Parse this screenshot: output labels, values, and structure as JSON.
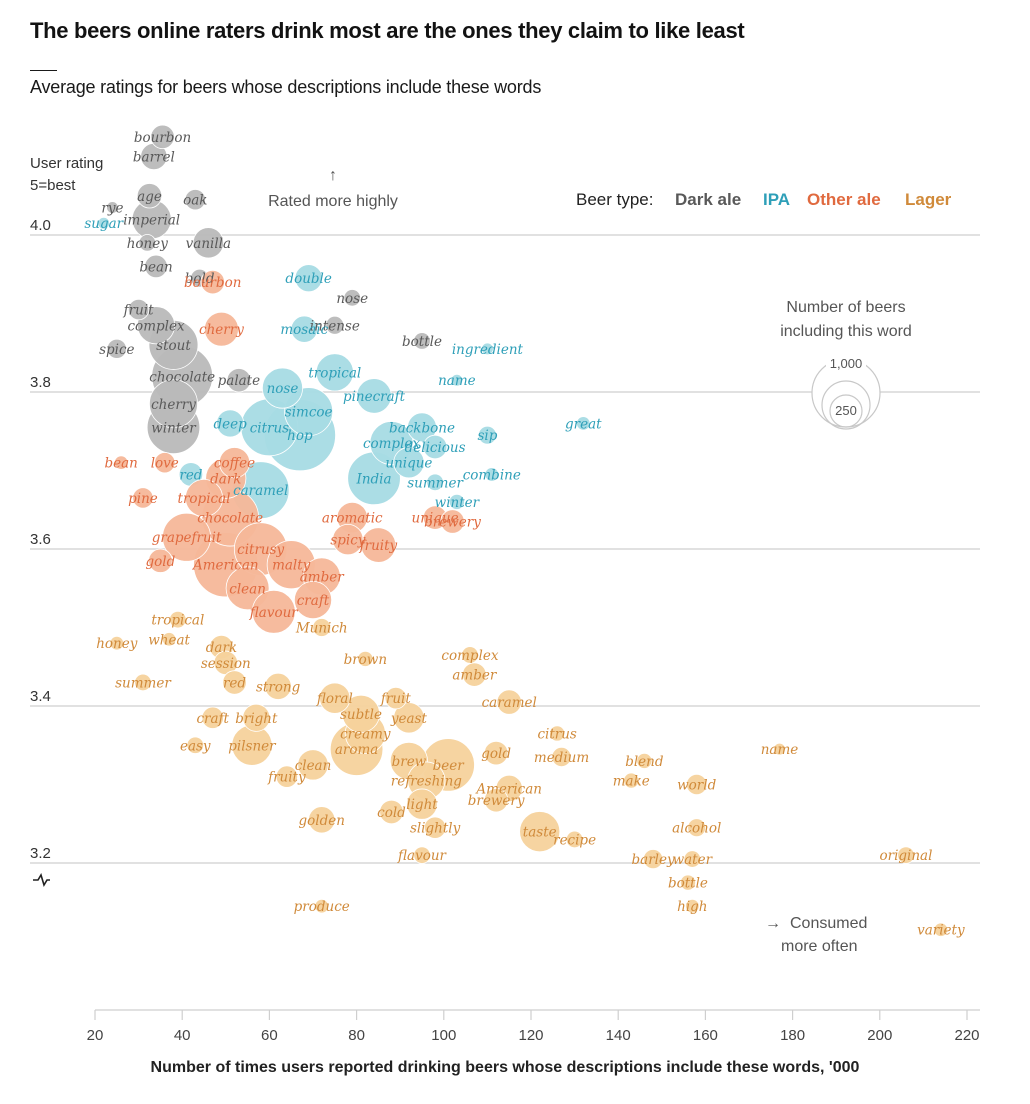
{
  "header": {
    "title": "The beers online raters drink most are the ones they claim to like least",
    "subtitle": "Average ratings for beers whose descriptions include these words"
  },
  "annotations": {
    "y_axis_title_line1": "User rating",
    "y_axis_title_line2": "5=best",
    "rated_more_highly": "Rated more highly",
    "consumed_more_often_line1": "Consumed",
    "consumed_more_often_line2": "more often",
    "size_legend_line1": "Number of beers",
    "size_legend_line2": "including this word",
    "size_legend_large": "1,000",
    "size_legend_small": "250",
    "legend_prefix": "Beer type:"
  },
  "chart_data": {
    "type": "scatter",
    "title": "The beers online raters drink most are the ones they claim to like least",
    "subtitle": "Average ratings for beers whose descriptions include these words",
    "xlabel": "Number of times users reported drinking beers whose descriptions include these words, '000",
    "ylabel": "User rating 5=best",
    "xlim": [
      20,
      222
    ],
    "ylim": [
      3.05,
      4.1
    ],
    "xticks": [
      "20",
      "40",
      "60",
      "80",
      "100",
      "120",
      "140",
      "160",
      "180",
      "200",
      "220"
    ],
    "yticks": [
      "4.0",
      "3.8",
      "3.6",
      "3.4",
      "3.2"
    ],
    "ytick_values": [
      4.0,
      3.8,
      3.6,
      3.4,
      3.2
    ],
    "grid": "horizontal",
    "legend": {
      "title": "Beer type:",
      "placement": "top-right",
      "entries": [
        {
          "name": "Dark ale",
          "color": "#595959",
          "bubble": "#b9b9b9"
        },
        {
          "name": "IPA",
          "color": "#2e9fb8",
          "bubble": "#a6dbe4"
        },
        {
          "name": "Other ale",
          "color": "#e06a3f",
          "bubble": "#f5b799"
        },
        {
          "name": "Lager",
          "color": "#d08a3a",
          "bubble": "#f5d29c"
        }
      ]
    },
    "size_legend": {
      "label": "Number of beers including this word",
      "values": [
        1000,
        250
      ]
    },
    "series": [
      {
        "name": "Dark ale",
        "points": [
          {
            "word": "bourbon",
            "x": 35.5,
            "y": 4.125,
            "n": 120
          },
          {
            "word": "barrel",
            "x": 33.5,
            "y": 4.1,
            "n": 150
          },
          {
            "word": "age",
            "x": 32.5,
            "y": 4.05,
            "n": 130
          },
          {
            "word": "oak",
            "x": 43,
            "y": 4.045,
            "n": 90
          },
          {
            "word": "rye",
            "x": 24,
            "y": 4.035,
            "n": 30
          },
          {
            "word": "imperial",
            "x": 33,
            "y": 4.02,
            "n": 330
          },
          {
            "word": "honey",
            "x": 32,
            "y": 3.99,
            "n": 60
          },
          {
            "word": "vanilla",
            "x": 46,
            "y": 3.99,
            "n": 200
          },
          {
            "word": "bean",
            "x": 34,
            "y": 3.96,
            "n": 110
          },
          {
            "word": "bold",
            "x": 44,
            "y": 3.945,
            "n": 70
          },
          {
            "word": "nose",
            "x": 79,
            "y": 3.92,
            "n": 60
          },
          {
            "word": "fruit",
            "x": 30,
            "y": 3.905,
            "n": 90
          },
          {
            "word": "complex",
            "x": 34,
            "y": 3.885,
            "n": 300
          },
          {
            "word": "intense",
            "x": 75,
            "y": 3.885,
            "n": 70
          },
          {
            "word": "bottle",
            "x": 95,
            "y": 3.865,
            "n": 60
          },
          {
            "word": "spice",
            "x": 25,
            "y": 3.855,
            "n": 80
          },
          {
            "word": "stout",
            "x": 38,
            "y": 3.86,
            "n": 520
          },
          {
            "word": "chocolate",
            "x": 40,
            "y": 3.82,
            "n": 800
          },
          {
            "word": "palate",
            "x": 53,
            "y": 3.815,
            "n": 120
          },
          {
            "word": "cherry",
            "x": 38,
            "y": 3.785,
            "n": 500
          },
          {
            "word": "winter",
            "x": 38,
            "y": 3.755,
            "n": 600
          }
        ]
      },
      {
        "name": "IPA",
        "points": [
          {
            "word": "sugar",
            "x": 22,
            "y": 4.015,
            "n": 30
          },
          {
            "word": "double",
            "x": 69,
            "y": 3.945,
            "n": 160
          },
          {
            "word": "mosaic",
            "x": 68,
            "y": 3.88,
            "n": 150
          },
          {
            "word": "ingredient",
            "x": 110,
            "y": 3.855,
            "n": 30
          },
          {
            "word": "tropical",
            "x": 75,
            "y": 3.825,
            "n": 300
          },
          {
            "word": "name",
            "x": 103,
            "y": 3.815,
            "n": 30
          },
          {
            "word": "nose",
            "x": 63,
            "y": 3.805,
            "n": 350
          },
          {
            "word": "pinecraft",
            "x": 84,
            "y": 3.795,
            "n": 260
          },
          {
            "word": "great",
            "x": 132,
            "y": 3.76,
            "n": 40
          },
          {
            "word": "simcoe",
            "x": 69,
            "y": 3.775,
            "n": 500
          },
          {
            "word": "deep",
            "x": 51,
            "y": 3.76,
            "n": 160
          },
          {
            "word": "citrus",
            "x": 60,
            "y": 3.755,
            "n": 700
          },
          {
            "word": "hop",
            "x": 67,
            "y": 3.745,
            "n": 1100
          },
          {
            "word": "backbone",
            "x": 95,
            "y": 3.755,
            "n": 180
          },
          {
            "word": "sip",
            "x": 110,
            "y": 3.745,
            "n": 70
          },
          {
            "word": "complex",
            "x": 88,
            "y": 3.735,
            "n": 400
          },
          {
            "word": "delicious",
            "x": 98,
            "y": 3.73,
            "n": 120
          },
          {
            "word": "unique",
            "x": 92,
            "y": 3.71,
            "n": 200
          },
          {
            "word": "India",
            "x": 84,
            "y": 3.69,
            "n": 600
          },
          {
            "word": "combine",
            "x": 111,
            "y": 3.695,
            "n": 40
          },
          {
            "word": "summer",
            "x": 98,
            "y": 3.685,
            "n": 60
          },
          {
            "word": "red",
            "x": 42,
            "y": 3.695,
            "n": 120
          },
          {
            "word": "caramel",
            "x": 58,
            "y": 3.675,
            "n": 700
          },
          {
            "word": "winter",
            "x": 103,
            "y": 3.66,
            "n": 50
          }
        ]
      },
      {
        "name": "Other ale",
        "points": [
          {
            "word": "bourbon",
            "x": 47,
            "y": 3.94,
            "n": 120
          },
          {
            "word": "cherry",
            "x": 49,
            "y": 3.88,
            "n": 250
          },
          {
            "word": "bean",
            "x": 26,
            "y": 3.71,
            "n": 40
          },
          {
            "word": "love",
            "x": 36,
            "y": 3.71,
            "n": 90
          },
          {
            "word": "coffee",
            "x": 52,
            "y": 3.71,
            "n": 200
          },
          {
            "word": "dark",
            "x": 50,
            "y": 3.69,
            "n": 350
          },
          {
            "word": "pine",
            "x": 31,
            "y": 3.665,
            "n": 90
          },
          {
            "word": "tropical",
            "x": 45,
            "y": 3.665,
            "n": 300
          },
          {
            "word": "chocolate",
            "x": 51,
            "y": 3.64,
            "n": 700
          },
          {
            "word": "aromatic",
            "x": 79,
            "y": 3.64,
            "n": 200
          },
          {
            "word": "unique",
            "x": 98,
            "y": 3.64,
            "n": 120
          },
          {
            "word": "brewery",
            "x": 102,
            "y": 3.635,
            "n": 120
          },
          {
            "word": "grapefruit",
            "x": 41,
            "y": 3.615,
            "n": 500
          },
          {
            "word": "spicy",
            "x": 78,
            "y": 3.612,
            "n": 200
          },
          {
            "word": "fruity",
            "x": 85,
            "y": 3.605,
            "n": 260
          },
          {
            "word": "citrusy",
            "x": 58,
            "y": 3.6,
            "n": 600
          },
          {
            "word": "gold",
            "x": 35,
            "y": 3.585,
            "n": 120
          },
          {
            "word": "American",
            "x": 50,
            "y": 3.58,
            "n": 900
          },
          {
            "word": "malty",
            "x": 65,
            "y": 3.58,
            "n": 500
          },
          {
            "word": "amber",
            "x": 72,
            "y": 3.565,
            "n": 300
          },
          {
            "word": "clean",
            "x": 55,
            "y": 3.55,
            "n": 400
          },
          {
            "word": "craft",
            "x": 70,
            "y": 3.535,
            "n": 300
          },
          {
            "word": "flavour",
            "x": 61,
            "y": 3.52,
            "n": 400
          }
        ]
      },
      {
        "name": "Lager",
        "points": [
          {
            "word": "tropical",
            "x": 39,
            "y": 3.51,
            "n": 60
          },
          {
            "word": "Munich",
            "x": 72,
            "y": 3.5,
            "n": 70
          },
          {
            "word": "honey",
            "x": 25,
            "y": 3.48,
            "n": 40
          },
          {
            "word": "wheat",
            "x": 37,
            "y": 3.485,
            "n": 40
          },
          {
            "word": "dark",
            "x": 49,
            "y": 3.475,
            "n": 120
          },
          {
            "word": "brown",
            "x": 82,
            "y": 3.46,
            "n": 50
          },
          {
            "word": "complex",
            "x": 106,
            "y": 3.465,
            "n": 60
          },
          {
            "word": "session",
            "x": 50,
            "y": 3.455,
            "n": 120
          },
          {
            "word": "amber",
            "x": 107,
            "y": 3.44,
            "n": 120
          },
          {
            "word": "summer",
            "x": 31,
            "y": 3.43,
            "n": 60
          },
          {
            "word": "red",
            "x": 52,
            "y": 3.43,
            "n": 120
          },
          {
            "word": "strong",
            "x": 62,
            "y": 3.425,
            "n": 150
          },
          {
            "word": "floral",
            "x": 75,
            "y": 3.41,
            "n": 200
          },
          {
            "word": "fruit",
            "x": 89,
            "y": 3.41,
            "n": 100
          },
          {
            "word": "caramel",
            "x": 115,
            "y": 3.405,
            "n": 130
          },
          {
            "word": "craft",
            "x": 47,
            "y": 3.385,
            "n": 100
          },
          {
            "word": "bright",
            "x": 57,
            "y": 3.385,
            "n": 160
          },
          {
            "word": "subtle",
            "x": 81,
            "y": 3.39,
            "n": 300
          },
          {
            "word": "yeast",
            "x": 92,
            "y": 3.385,
            "n": 200
          },
          {
            "word": "creamy",
            "x": 82,
            "y": 3.365,
            "n": 350
          },
          {
            "word": "citrus",
            "x": 126,
            "y": 3.365,
            "n": 50
          },
          {
            "word": "easy",
            "x": 43,
            "y": 3.35,
            "n": 60
          },
          {
            "word": "pilsner",
            "x": 56,
            "y": 3.35,
            "n": 350
          },
          {
            "word": "aroma",
            "x": 80,
            "y": 3.345,
            "n": 600
          },
          {
            "word": "gold",
            "x": 112,
            "y": 3.34,
            "n": 120
          },
          {
            "word": "medium",
            "x": 127,
            "y": 3.335,
            "n": 80
          },
          {
            "word": "name",
            "x": 177,
            "y": 3.345,
            "n": 30
          },
          {
            "word": "clean",
            "x": 70,
            "y": 3.325,
            "n": 200
          },
          {
            "word": "blend",
            "x": 146,
            "y": 3.33,
            "n": 50
          },
          {
            "word": "brew",
            "x": 92,
            "y": 3.33,
            "n": 300
          },
          {
            "word": "beer",
            "x": 101,
            "y": 3.325,
            "n": 600
          },
          {
            "word": "fruity",
            "x": 64,
            "y": 3.31,
            "n": 100
          },
          {
            "word": "refreshing",
            "x": 96,
            "y": 3.305,
            "n": 300
          },
          {
            "word": "make",
            "x": 143,
            "y": 3.305,
            "n": 50
          },
          {
            "word": "world",
            "x": 158,
            "y": 3.3,
            "n": 90
          },
          {
            "word": "American",
            "x": 115,
            "y": 3.295,
            "n": 150
          },
          {
            "word": "light",
            "x": 95,
            "y": 3.275,
            "n": 200
          },
          {
            "word": "brewery",
            "x": 112,
            "y": 3.28,
            "n": 120
          },
          {
            "word": "cold",
            "x": 88,
            "y": 3.265,
            "n": 120
          },
          {
            "word": "golden",
            "x": 72,
            "y": 3.255,
            "n": 150
          },
          {
            "word": "alcohol",
            "x": 158,
            "y": 3.245,
            "n": 70
          },
          {
            "word": "slightly",
            "x": 98,
            "y": 3.245,
            "n": 100
          },
          {
            "word": "taste",
            "x": 122,
            "y": 3.24,
            "n": 350
          },
          {
            "word": "recipe",
            "x": 130,
            "y": 3.23,
            "n": 60
          },
          {
            "word": "flavour",
            "x": 95,
            "y": 3.21,
            "n": 60
          },
          {
            "word": "original",
            "x": 206,
            "y": 3.21,
            "n": 60
          },
          {
            "word": "barley",
            "x": 148,
            "y": 3.205,
            "n": 80
          },
          {
            "word": "water",
            "x": 157,
            "y": 3.205,
            "n": 60
          },
          {
            "word": "bottle",
            "x": 156,
            "y": 3.175,
            "n": 50
          },
          {
            "word": "produce",
            "x": 72,
            "y": 3.145,
            "n": 40
          },
          {
            "word": "high",
            "x": 157,
            "y": 3.145,
            "n": 40
          },
          {
            "word": "variety",
            "x": 214,
            "y": 3.115,
            "n": 40
          }
        ]
      }
    ]
  }
}
